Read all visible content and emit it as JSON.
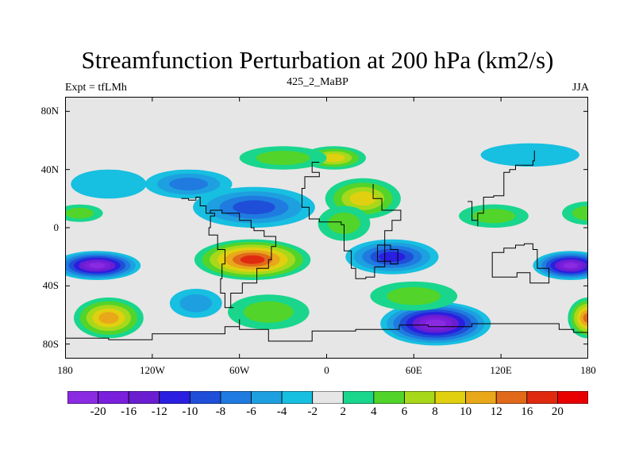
{
  "title": "Streamfunction Perturbation at 200 hPa (km2/s)",
  "left_string": "Expt = tfLMh",
  "center_string": "425_2_MaBP",
  "right_string": "JJA",
  "map": {
    "projection": "cylindrical-equidistant",
    "lon_range": [
      -180,
      180
    ],
    "lat_range": [
      -90,
      90
    ],
    "background_color": "#e6e6e6",
    "outline_color": "#000000",
    "yticks": [
      {
        "label": "80N",
        "lat": 80
      },
      {
        "label": "40N",
        "lat": 40
      },
      {
        "label": "0",
        "lat": 0
      },
      {
        "label": "40S",
        "lat": -40
      },
      {
        "label": "80S",
        "lat": -80
      }
    ],
    "xticks": [
      {
        "label": "180",
        "lon": -180
      },
      {
        "label": "120W",
        "lon": -120
      },
      {
        "label": "60W",
        "lon": -60
      },
      {
        "label": "0",
        "lon": 0
      },
      {
        "label": "60E",
        "lon": 60
      },
      {
        "label": "120E",
        "lon": 120
      },
      {
        "label": "180",
        "lon": 180
      }
    ]
  },
  "colorbar": {
    "colors": [
      "#8a2be2",
      "#7a1fdc",
      "#6a1ed0",
      "#2a1fe0",
      "#1f4fd8",
      "#1f7be0",
      "#1ea0e0",
      "#17bfe0",
      "#e6e6e6",
      "#19d68c",
      "#52d42a",
      "#a8d81a",
      "#e0d010",
      "#e8a81a",
      "#e06a1a",
      "#e02a10",
      "#e80000"
    ],
    "labels": [
      "-20",
      "-16",
      "-12",
      "-10",
      "-8",
      "-6",
      "-4",
      "-2",
      "2",
      "4",
      "6",
      "8",
      "10",
      "12",
      "16",
      "20"
    ]
  },
  "field_blobs": [
    {
      "lon": -158,
      "lat": -26,
      "rx": 30,
      "ry": 10,
      "value": -22
    },
    {
      "lon": 168,
      "lat": -26,
      "rx": 26,
      "ry": 10,
      "value": -22
    },
    {
      "lon": 75,
      "lat": -66,
      "rx": 38,
      "ry": 15,
      "value": -20
    },
    {
      "lon": -51,
      "lat": -22,
      "rx": 40,
      "ry": 14,
      "value": 18
    },
    {
      "lon": -150,
      "lat": -62,
      "rx": 24,
      "ry": 14,
      "value": 10
    },
    {
      "lon": 180,
      "lat": -62,
      "rx": 14,
      "ry": 14,
      "value": 12
    },
    {
      "lon": -50,
      "lat": 14,
      "rx": 42,
      "ry": 14,
      "value": -8
    },
    {
      "lon": -95,
      "lat": 30,
      "rx": 30,
      "ry": 10,
      "value": -6
    },
    {
      "lon": -150,
      "lat": 30,
      "rx": 26,
      "ry": 10,
      "value": -2
    },
    {
      "lon": 140,
      "lat": 50,
      "rx": 34,
      "ry": 8,
      "value": -2
    },
    {
      "lon": 45,
      "lat": -20,
      "rx": 32,
      "ry": 12,
      "value": -10
    },
    {
      "lon": 25,
      "lat": 20,
      "rx": 26,
      "ry": 14,
      "value": 8
    },
    {
      "lon": 5,
      "lat": 48,
      "rx": 22,
      "ry": 8,
      "value": 8
    },
    {
      "lon": 12,
      "lat": 3,
      "rx": 18,
      "ry": 12,
      "value": 4
    },
    {
      "lon": -30,
      "lat": 48,
      "rx": 30,
      "ry": 8,
      "value": 4
    },
    {
      "lon": -90,
      "lat": -52,
      "rx": 18,
      "ry": 10,
      "value": -4
    },
    {
      "lon": -40,
      "lat": -58,
      "rx": 28,
      "ry": 12,
      "value": 4
    },
    {
      "lon": -170,
      "lat": 10,
      "rx": 16,
      "ry": 6,
      "value": 4
    },
    {
      "lon": 180,
      "lat": 10,
      "rx": 18,
      "ry": 8,
      "value": 4
    },
    {
      "lon": 115,
      "lat": 8,
      "rx": 24,
      "ry": 8,
      "value": 4
    },
    {
      "lon": 60,
      "lat": -47,
      "rx": 30,
      "ry": 10,
      "value": 4
    }
  ],
  "coastline_segments": [
    [
      [
        -5,
        45
      ],
      [
        -10,
        43
      ],
      [
        -10,
        38
      ],
      [
        -5,
        35
      ],
      [
        -15,
        27
      ],
      [
        -17,
        20
      ],
      [
        -17,
        14
      ],
      [
        -12,
        6
      ],
      [
        -5,
        4
      ],
      [
        5,
        4
      ],
      [
        10,
        2
      ],
      [
        12,
        -5
      ],
      [
        12,
        -16
      ],
      [
        17,
        -28
      ],
      [
        20,
        -35
      ],
      [
        27,
        -34
      ],
      [
        33,
        -27
      ],
      [
        40,
        -15
      ],
      [
        40,
        -2
      ],
      [
        45,
        5
      ],
      [
        51,
        12
      ],
      [
        44,
        12
      ],
      [
        38,
        20
      ],
      [
        32,
        30
      ]
    ],
    [
      [
        -80,
        10
      ],
      [
        -77,
        8
      ],
      [
        -80,
        0
      ],
      [
        -81,
        -5
      ],
      [
        -75,
        -15
      ],
      [
        -70,
        -25
      ],
      [
        -72,
        -35
      ],
      [
        -73,
        -45
      ],
      [
        -70,
        -55
      ],
      [
        -64,
        -55
      ],
      [
        -66,
        -45
      ],
      [
        -58,
        -38
      ],
      [
        -48,
        -28
      ],
      [
        -40,
        -22
      ],
      [
        -38,
        -13
      ],
      [
        -35,
        -6
      ],
      [
        -43,
        -2
      ],
      [
        -50,
        0
      ],
      [
        -52,
        5
      ],
      [
        -60,
        10
      ],
      [
        -72,
        12
      ],
      [
        -80,
        10
      ]
    ],
    [
      [
        -100,
        20
      ],
      [
        -95,
        19
      ],
      [
        -90,
        21
      ],
      [
        -87,
        15
      ],
      [
        -83,
        10
      ],
      [
        -80,
        10
      ]
    ],
    [
      [
        114,
        -22
      ],
      [
        114,
        -34
      ],
      [
        123,
        -34
      ],
      [
        131,
        -31
      ],
      [
        140,
        -38
      ],
      [
        148,
        -38
      ],
      [
        153,
        -28
      ],
      [
        145,
        -15
      ],
      [
        142,
        -11
      ],
      [
        136,
        -12
      ],
      [
        130,
        -14
      ],
      [
        122,
        -17
      ],
      [
        114,
        -22
      ]
    ],
    [
      [
        97,
        18
      ],
      [
        100,
        14
      ],
      [
        100,
        5
      ],
      [
        104,
        1
      ],
      [
        104,
        10
      ],
      [
        108,
        12
      ],
      [
        108,
        21
      ],
      [
        115,
        22
      ],
      [
        122,
        30
      ],
      [
        122,
        38
      ],
      [
        126,
        40
      ],
      [
        130,
        43
      ],
      [
        142,
        46
      ],
      [
        143,
        53
      ]
    ],
    [
      [
        -180,
        -76
      ],
      [
        -150,
        -77
      ],
      [
        -120,
        -73
      ],
      [
        -90,
        -73
      ],
      [
        -70,
        -68
      ],
      [
        -60,
        -63
      ],
      [
        -60,
        -70
      ],
      [
        -40,
        -78
      ],
      [
        -10,
        -71
      ],
      [
        20,
        -70
      ],
      [
        50,
        -67
      ],
      [
        70,
        -68
      ],
      [
        100,
        -66
      ],
      [
        130,
        -66
      ],
      [
        160,
        -70
      ],
      [
        170,
        -72
      ],
      [
        180,
        -76
      ]
    ],
    [
      [
        35,
        -23
      ],
      [
        44,
        -25
      ],
      [
        49,
        -15
      ],
      [
        44,
        -12
      ],
      [
        35,
        -23
      ]
    ]
  ]
}
